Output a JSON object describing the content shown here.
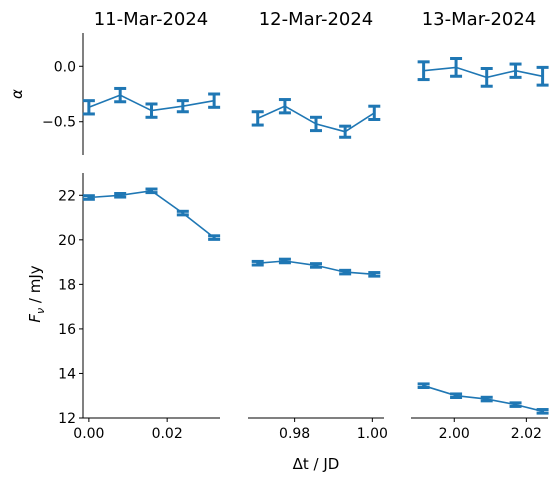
{
  "figure": {
    "xlabel": "Δt / JD",
    "ylabel_top": "α",
    "ylabel_bottom": "F_ν / mJy"
  },
  "chart_data": [
    {
      "type": "line",
      "panel": "alpha-11mar",
      "title": "11-Mar-2024",
      "x": [
        0.0,
        0.008,
        0.016,
        0.024,
        0.032
      ],
      "y": [
        -0.37,
        -0.26,
        -0.4,
        -0.36,
        -0.31
      ],
      "yerr": [
        0.06,
        0.06,
        0.06,
        0.05,
        0.06
      ],
      "xlim": [
        -0.0015,
        0.0335
      ],
      "ylim": [
        -0.8,
        0.3
      ],
      "ylabel": "α",
      "yticks": [
        0.0,
        -0.5
      ],
      "xticks": [],
      "color": "#1f77b4"
    },
    {
      "type": "line",
      "panel": "alpha-12mar",
      "title": "12-Mar-2024",
      "x": [
        0.9705,
        0.9775,
        0.9855,
        0.993,
        1.0005
      ],
      "y": [
        -0.47,
        -0.36,
        -0.52,
        -0.59,
        -0.42
      ],
      "yerr": [
        0.06,
        0.06,
        0.06,
        0.05,
        0.06
      ],
      "xlim": [
        0.968,
        1.003
      ],
      "ylim": [
        -0.8,
        0.3
      ],
      "yticks": [],
      "xticks": [],
      "color": "#1f77b4"
    },
    {
      "type": "line",
      "panel": "alpha-13mar",
      "title": "13-Mar-2024",
      "x": [
        1.9915,
        2.0005,
        2.009,
        2.017,
        2.0245
      ],
      "y": [
        -0.04,
        -0.01,
        -0.1,
        -0.04,
        -0.09
      ],
      "yerr": [
        0.08,
        0.08,
        0.08,
        0.06,
        0.08
      ],
      "xlim": [
        1.988,
        2.026
      ],
      "ylim": [
        -0.8,
        0.3
      ],
      "yticks": [],
      "xticks": [],
      "color": "#1f77b4"
    },
    {
      "type": "line",
      "panel": "flux-11mar",
      "x": [
        0.0,
        0.008,
        0.016,
        0.024,
        0.032
      ],
      "y": [
        21.9,
        22.0,
        22.2,
        21.2,
        20.1
      ],
      "yerr": [
        0.08,
        0.08,
        0.08,
        0.08,
        0.08
      ],
      "xlim": [
        -0.0015,
        0.0335
      ],
      "ylim": [
        12,
        23
      ],
      "ylabel": "F_ν / mJy",
      "yticks": [
        12,
        14,
        16,
        18,
        20,
        22
      ],
      "xticks": [
        "0.00",
        "0.02"
      ],
      "color": "#1f77b4"
    },
    {
      "type": "line",
      "panel": "flux-12mar",
      "x": [
        0.9705,
        0.9775,
        0.9855,
        0.993,
        1.0005
      ],
      "y": [
        18.95,
        19.05,
        18.85,
        18.55,
        18.45
      ],
      "yerr": [
        0.08,
        0.08,
        0.08,
        0.08,
        0.08
      ],
      "xlim": [
        0.968,
        1.003
      ],
      "ylim": [
        12,
        23
      ],
      "xlabel": "Δt / JD",
      "yticks": [],
      "xticks": [
        "0.98",
        "1.00"
      ],
      "color": "#1f77b4"
    },
    {
      "type": "line",
      "panel": "flux-13mar",
      "x": [
        1.9915,
        2.0005,
        2.009,
        2.017,
        2.0245
      ],
      "y": [
        13.45,
        13.0,
        12.85,
        12.6,
        12.3
      ],
      "yerr": [
        0.08,
        0.08,
        0.08,
        0.08,
        0.08
      ],
      "xlim": [
        1.988,
        2.026
      ],
      "ylim": [
        12,
        23
      ],
      "yticks": [],
      "xticks": [
        "2.00",
        "2.02"
      ],
      "color": "#1f77b4"
    }
  ]
}
